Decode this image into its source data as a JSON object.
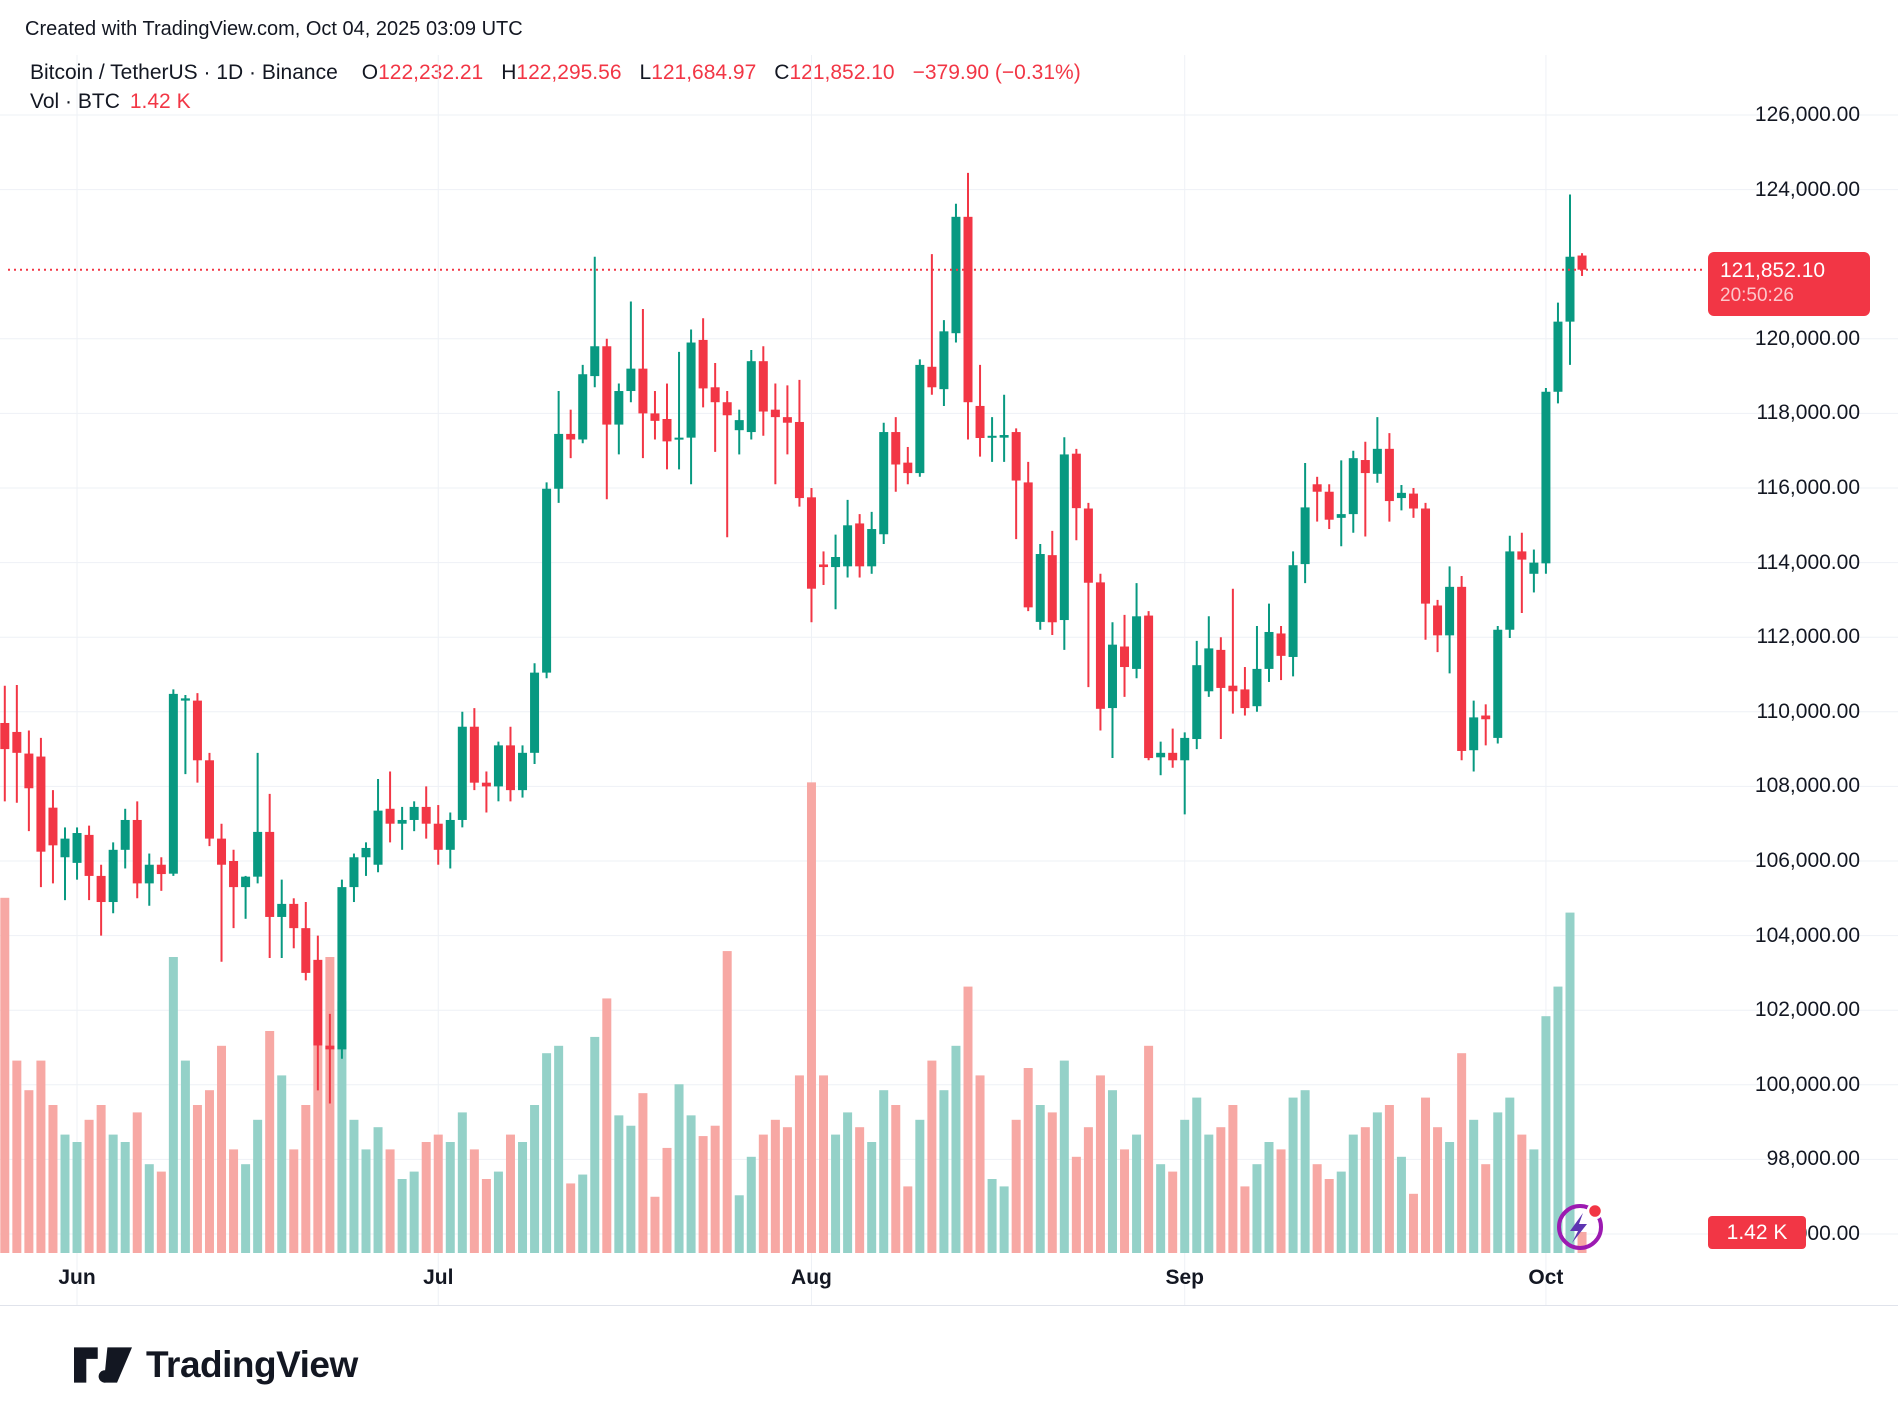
{
  "header": {
    "attribution": "Created with TradingView.com, Oct 04, 2025 03:09 UTC"
  },
  "legend": {
    "symbol_title": "Bitcoin / TetherUS · 1D · Binance",
    "open_label": "O",
    "open_value": "122,232.21",
    "high_label": "H",
    "high_value": "122,295.56",
    "low_label": "L",
    "low_value": "121,684.97",
    "close_label": "C",
    "close_value": "121,852.10",
    "change_text": "−379.90 (−0.31%)",
    "volume_label": "Vol · BTC",
    "volume_value": "1.42 K"
  },
  "price_scale": {
    "labels": [
      {
        "text": "126,000.00",
        "value": 126000
      },
      {
        "text": "124,000.00",
        "value": 124000
      },
      {
        "text": "120,000.00",
        "value": 120000
      },
      {
        "text": "118,000.00",
        "value": 118000
      },
      {
        "text": "116,000.00",
        "value": 116000
      },
      {
        "text": "114,000.00",
        "value": 114000
      },
      {
        "text": "112,000.00",
        "value": 112000
      },
      {
        "text": "110,000.00",
        "value": 110000
      },
      {
        "text": "108,000.00",
        "value": 108000
      },
      {
        "text": "106,000.00",
        "value": 106000
      },
      {
        "text": "104,000.00",
        "value": 104000
      },
      {
        "text": "102,000.00",
        "value": 102000
      },
      {
        "text": "100,000.00",
        "value": 100000
      },
      {
        "text": "98,000.00",
        "value": 98000
      },
      {
        "text": "96,000.00",
        "value": 96000
      }
    ],
    "last_price_badge": {
      "price_text": "121,852.10",
      "price_value": 121852.1,
      "countdown": "20:50:26"
    },
    "volume_badge": {
      "text": "1.42 K",
      "value_k": 1.42
    }
  },
  "time_scale": {
    "months": [
      {
        "label": "Jun",
        "candle_index": 6
      },
      {
        "label": "Jul",
        "candle_index": 36
      },
      {
        "label": "Aug",
        "candle_index": 67
      },
      {
        "label": "Sep",
        "candle_index": 98
      },
      {
        "label": "Oct",
        "candle_index": 128
      }
    ]
  },
  "watermark": {
    "logo_text": "TradingView"
  },
  "icons": {
    "logo_mark": "tradingview-17-mark",
    "flash": "lightning-bolt-circle-with-red-dot"
  },
  "colors": {
    "up": "#089981",
    "down": "#f23645",
    "vol_up": "#94d1c8",
    "vol_down": "#f7a8a4",
    "accent_red": "#f23645",
    "text": "#131722",
    "grid": "#eef1f6",
    "border": "#e0e3eb"
  },
  "chart_data": {
    "type": "candlestick_with_volume",
    "title": "Bitcoin / TetherUS · 1D · Binance",
    "symbol": "BTCUSDT",
    "interval": "1D",
    "exchange": "Binance",
    "legend_position": "top-left",
    "grid": true,
    "y_axis": {
      "side": "right",
      "min": 96000,
      "max": 127000,
      "tick_step": 2000
    },
    "x_axis": {
      "start": "May 26",
      "end": "Oct 4",
      "tick_labels": [
        "Jun",
        "Jul",
        "Aug",
        "Sep",
        "Oct"
      ]
    },
    "last_price": 121852.1,
    "last_change": -379.9,
    "last_change_pct": -0.31,
    "last_volume_btc_k": 1.42,
    "columns": [
      "date",
      "open",
      "high",
      "low",
      "close",
      "volume_k_btc"
    ],
    "candles": [
      [
        "May 26",
        109700,
        110700,
        107600,
        109000,
        24
      ],
      [
        "May 27",
        109460,
        110720,
        107560,
        108900,
        13
      ],
      [
        "May 28",
        108880,
        109500,
        106800,
        107950,
        11
      ],
      [
        "May 29",
        108800,
        109300,
        105300,
        106250,
        13
      ],
      [
        "May 30",
        107430,
        107900,
        105400,
        106420,
        10
      ],
      [
        "May 31",
        106100,
        106900,
        104950,
        106600,
        8
      ],
      [
        "Jun 1",
        105950,
        106900,
        105500,
        106750,
        7.5
      ],
      [
        "Jun 2",
        106700,
        106950,
        104950,
        105600,
        9
      ],
      [
        "Jun 3",
        105600,
        105900,
        104000,
        104900,
        10
      ],
      [
        "Jun 4",
        104900,
        106500,
        104600,
        106300,
        8
      ],
      [
        "Jun 5",
        106300,
        107400,
        105800,
        107100,
        7.5
      ],
      [
        "Jun 6",
        107100,
        107600,
        105000,
        105400,
        9.5
      ],
      [
        "Jun 7",
        105400,
        106200,
        104800,
        105900,
        6
      ],
      [
        "Jun 8",
        105900,
        106100,
        105200,
        105650,
        5.5
      ],
      [
        "Jun 9",
        105660,
        110600,
        105600,
        110480,
        20
      ],
      [
        "Jun 10",
        110300,
        110450,
        108330,
        110360,
        13
      ],
      [
        "Jun 11",
        110300,
        110500,
        108100,
        108700,
        10
      ],
      [
        "Jun 12",
        108700,
        108900,
        106400,
        106600,
        11
      ],
      [
        "Jun 13",
        106600,
        107000,
        103300,
        105900,
        14
      ],
      [
        "Jun 14",
        106000,
        106300,
        104200,
        105300,
        7
      ],
      [
        "Jun 15",
        105300,
        105600,
        104450,
        105580,
        6
      ],
      [
        "Jun 16",
        105580,
        108900,
        105400,
        106780,
        9
      ],
      [
        "Jun 17",
        106780,
        107800,
        103400,
        104500,
        15
      ],
      [
        "Jun 18",
        104500,
        105500,
        103400,
        104850,
        12
      ],
      [
        "Jun 19",
        104850,
        105000,
        103660,
        104200,
        7
      ],
      [
        "Jun 20",
        104200,
        104900,
        102800,
        103000,
        10
      ],
      [
        "Jun 21",
        103350,
        104000,
        99850,
        101050,
        14
      ],
      [
        "Jun 22",
        101050,
        101900,
        99500,
        100950,
        20
      ],
      [
        "Jun 23",
        100950,
        105500,
        100700,
        105300,
        17
      ],
      [
        "Jun 24",
        105300,
        106200,
        104900,
        106100,
        9
      ],
      [
        "Jun 25",
        106100,
        106500,
        105600,
        106350,
        7
      ],
      [
        "Jun 26",
        105900,
        108200,
        105700,
        107350,
        8.5
      ],
      [
        "Jun 27",
        107400,
        108400,
        106500,
        107000,
        7
      ],
      [
        "Jun 28",
        107000,
        107450,
        106300,
        107100,
        5
      ],
      [
        "Jun 29",
        107100,
        107600,
        106800,
        107450,
        5.5
      ],
      [
        "Jun 30",
        107450,
        108000,
        106600,
        107000,
        7.5
      ],
      [
        "Jul 1",
        107000,
        107500,
        105900,
        106300,
        8
      ],
      [
        "Jul 2",
        106300,
        107300,
        105800,
        107100,
        7.5
      ],
      [
        "Jul 3",
        107100,
        110000,
        106900,
        109600,
        9.5
      ],
      [
        "Jul 4",
        109600,
        110100,
        107900,
        108100,
        7
      ],
      [
        "Jul 5",
        108100,
        108400,
        107300,
        108000,
        5
      ],
      [
        "Jul 6",
        108000,
        109200,
        107600,
        109100,
        5.5
      ],
      [
        "Jul 7",
        109100,
        109600,
        107600,
        107900,
        8
      ],
      [
        "Jul 8",
        107900,
        109100,
        107700,
        108900,
        7.5
      ],
      [
        "Jul 9",
        108900,
        111300,
        108600,
        111050,
        10
      ],
      [
        "Jul 10",
        111050,
        116150,
        110900,
        115980,
        13.5
      ],
      [
        "Jul 11",
        115980,
        118600,
        115600,
        117450,
        14
      ],
      [
        "Jul 12",
        117450,
        118100,
        116800,
        117300,
        4.7
      ],
      [
        "Jul 13",
        117300,
        119300,
        117200,
        119050,
        5.3
      ],
      [
        "Jul 14",
        119000,
        122200,
        118700,
        119800,
        14.6
      ],
      [
        "Jul 15",
        119800,
        120000,
        115700,
        117700,
        17.2
      ],
      [
        "Jul 16",
        117700,
        118800,
        116900,
        118600,
        9.3
      ],
      [
        "Jul 17",
        118600,
        121000,
        118300,
        119200,
        8.6
      ],
      [
        "Jul 18",
        119200,
        120800,
        116800,
        118000,
        10.8
      ],
      [
        "Jul 19",
        118000,
        118600,
        117300,
        117800,
        3.8
      ],
      [
        "Jul 20",
        117850,
        118800,
        116500,
        117250,
        7.1
      ],
      [
        "Jul 21",
        117300,
        119650,
        116500,
        117350,
        11.4
      ],
      [
        "Jul 22",
        117350,
        120250,
        116100,
        119900,
        9.3
      ],
      [
        "Jul 23",
        119970,
        120550,
        118160,
        118670,
        7.9
      ],
      [
        "Jul 24",
        118700,
        119350,
        116970,
        118300,
        8.6
      ],
      [
        "Jul 25",
        118300,
        118600,
        114680,
        117950,
        20.4
      ],
      [
        "Jul 26",
        117550,
        118100,
        116900,
        117820,
        3.9
      ],
      [
        "Jul 27",
        117500,
        119700,
        117300,
        119400,
        6.5
      ],
      [
        "Jul 28",
        119400,
        119800,
        117400,
        118050,
        8
      ],
      [
        "Jul 29",
        118100,
        118800,
        116100,
        117900,
        9
      ],
      [
        "Jul 30",
        117900,
        118750,
        116900,
        117750,
        8.5
      ],
      [
        "Jul 31",
        117770,
        118900,
        115500,
        115730,
        12
      ],
      [
        "Aug 1",
        115750,
        116000,
        112400,
        113300,
        31.8
      ],
      [
        "Aug 2",
        113950,
        114300,
        113400,
        113880,
        12
      ],
      [
        "Aug 3",
        113880,
        114750,
        112750,
        114150,
        8
      ],
      [
        "Aug 4",
        113900,
        115680,
        113600,
        115000,
        9.5
      ],
      [
        "Aug 5",
        115050,
        115300,
        113600,
        113900,
        8.5
      ],
      [
        "Aug 6",
        113900,
        115360,
        113700,
        114900,
        7.5
      ],
      [
        "Aug 7",
        114760,
        117750,
        114500,
        117500,
        11
      ],
      [
        "Aug 8",
        117500,
        117900,
        115900,
        116630,
        10
      ],
      [
        "Aug 9",
        116680,
        117100,
        116100,
        116400,
        4.5
      ],
      [
        "Aug 10",
        116400,
        119450,
        116300,
        119300,
        9
      ],
      [
        "Aug 11",
        119250,
        122270,
        118500,
        118700,
        13
      ],
      [
        "Aug 12",
        118650,
        120500,
        118200,
        120200,
        11
      ],
      [
        "Aug 13",
        120150,
        123620,
        119900,
        123270,
        14
      ],
      [
        "Aug 14",
        123270,
        124450,
        117300,
        118300,
        18
      ],
      [
        "Aug 15",
        118200,
        119300,
        116840,
        117340,
        12
      ],
      [
        "Aug 16",
        117350,
        117900,
        116700,
        117400,
        5
      ],
      [
        "Aug 17",
        117350,
        118500,
        116700,
        117420,
        4.5
      ],
      [
        "Aug 18",
        117500,
        117600,
        114630,
        116200,
        9
      ],
      [
        "Aug 19",
        116150,
        116700,
        112700,
        112800,
        12.5
      ],
      [
        "Aug 20",
        112410,
        114500,
        112200,
        114230,
        10
      ],
      [
        "Aug 21",
        114200,
        114850,
        112060,
        112400,
        9.5
      ],
      [
        "Aug 22",
        112460,
        117360,
        111660,
        116900,
        13
      ],
      [
        "Aug 23",
        116920,
        117050,
        114600,
        115460,
        6.5
      ],
      [
        "Aug 24",
        115450,
        115600,
        110660,
        113460,
        8.5
      ],
      [
        "Aug 25",
        113470,
        113700,
        109500,
        110080,
        12
      ],
      [
        "Aug 26",
        110100,
        112400,
        108760,
        111800,
        11
      ],
      [
        "Aug 27",
        111750,
        112600,
        110400,
        111200,
        7
      ],
      [
        "Aug 28",
        111150,
        113450,
        110900,
        112560,
        8
      ],
      [
        "Aug 29",
        112580,
        112700,
        108700,
        108760,
        14
      ],
      [
        "Aug 30",
        108780,
        109200,
        108300,
        108900,
        6
      ],
      [
        "Aug 31",
        108900,
        109550,
        108500,
        108700,
        5.5
      ],
      [
        "Sep 1",
        108700,
        109450,
        107250,
        109300,
        9
      ],
      [
        "Sep 2",
        109270,
        111900,
        109000,
        111250,
        10.5
      ],
      [
        "Sep 3",
        110550,
        112560,
        110400,
        111700,
        8
      ],
      [
        "Sep 4",
        111660,
        112000,
        109270,
        110640,
        8.5
      ],
      [
        "Sep 5",
        110700,
        113300,
        109950,
        110550,
        10
      ],
      [
        "Sep 6",
        110600,
        111200,
        109900,
        110100,
        4.5
      ],
      [
        "Sep 7",
        110150,
        112300,
        110000,
        111150,
        6
      ],
      [
        "Sep 8",
        111150,
        112900,
        110800,
        112140,
        7.5
      ],
      [
        "Sep 9",
        112100,
        112300,
        110850,
        111500,
        7
      ],
      [
        "Sep 10",
        111470,
        114300,
        110950,
        113930,
        10.5
      ],
      [
        "Sep 11",
        113960,
        116670,
        113450,
        115480,
        11
      ],
      [
        "Sep 12",
        116100,
        116300,
        115100,
        115900,
        6
      ],
      [
        "Sep 13",
        115900,
        116100,
        114900,
        115150,
        5
      ],
      [
        "Sep 14",
        115200,
        116740,
        114440,
        115300,
        5.5
      ],
      [
        "Sep 15",
        115300,
        117000,
        114800,
        116800,
        8
      ],
      [
        "Sep 16",
        116750,
        117240,
        114700,
        116400,
        8.5
      ],
      [
        "Sep 17",
        116380,
        117900,
        116140,
        117050,
        9.5
      ],
      [
        "Sep 18",
        117050,
        117470,
        115100,
        115650,
        10
      ],
      [
        "Sep 19",
        115730,
        116080,
        115400,
        115870,
        6.5
      ],
      [
        "Sep 20",
        115850,
        116000,
        115200,
        115450,
        4
      ],
      [
        "Sep 21",
        115450,
        115600,
        111930,
        112900,
        10.5
      ],
      [
        "Sep 22",
        112850,
        113000,
        111600,
        112050,
        8.5
      ],
      [
        "Sep 23",
        112050,
        113900,
        111030,
        113350,
        7.5
      ],
      [
        "Sep 24",
        113350,
        113640,
        108700,
        108950,
        13.5
      ],
      [
        "Sep 25",
        108970,
        110300,
        108400,
        109850,
        9
      ],
      [
        "Sep 26",
        109900,
        110200,
        109100,
        109800,
        6
      ],
      [
        "Sep 27",
        109300,
        112300,
        109150,
        112200,
        9.5
      ],
      [
        "Sep 28",
        112200,
        114720,
        111980,
        114300,
        10.5
      ],
      [
        "Sep 29",
        114300,
        114800,
        112650,
        114080,
        8
      ],
      [
        "Sep 30",
        113700,
        114350,
        113200,
        114000,
        7
      ],
      [
        "Oct 1",
        113980,
        118680,
        113700,
        118580,
        16
      ],
      [
        "Oct 2",
        118580,
        120970,
        118270,
        120460,
        18
      ],
      [
        "Oct 3",
        120460,
        123870,
        119300,
        122200,
        23
      ],
      [
        "Oct 4",
        122232.21,
        122295.56,
        121684.97,
        121852.1,
        1.42
      ]
    ]
  }
}
